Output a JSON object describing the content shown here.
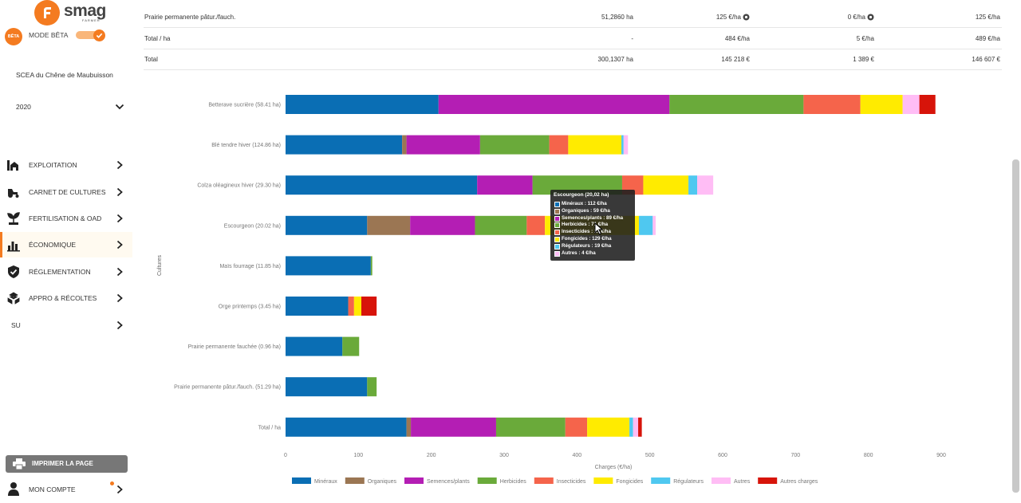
{
  "brand": {
    "name": "smag",
    "sub": "FARMER",
    "accent": "#f47b20"
  },
  "beta": {
    "badge": "BÊTA",
    "label": "MODE BÊTA",
    "enabled": true
  },
  "company": "SCEA du Chêne de Maubuisson",
  "year": "2020",
  "nav": [
    {
      "label": "EXPLOITATION",
      "icon": "farm-icon"
    },
    {
      "label": "CARNET DE CULTURES",
      "icon": "tractor-icon"
    },
    {
      "label": "FERTILISATION & OAD",
      "icon": "sprout-icon"
    },
    {
      "label": "ÉCONOMIQUE",
      "icon": "bar-chart-icon",
      "active": true
    },
    {
      "label": "RÉGLEMENTATION",
      "icon": "shield-check-icon"
    },
    {
      "label": "APPRO & RÉCOLTES",
      "icon": "boxes-icon"
    },
    {
      "label": "SU",
      "icon": ""
    }
  ],
  "print_label": "IMPRIMER LA PAGE",
  "account_label": "MON COMPTE",
  "summary_rows": [
    {
      "label": "Prairie permanente pâtur./fauch.",
      "surface": "51,2860 ha",
      "charges": "125 €/ha",
      "autres": "0 €/ha",
      "total": "125 €/ha",
      "icons": true
    },
    {
      "label": "Total / ha",
      "surface": "-",
      "charges": "484 €/ha",
      "autres": "5 €/ha",
      "total": "489 €/ha",
      "icons": false
    },
    {
      "label": "Total",
      "surface": "300,1307 ha",
      "charges": "145 218 €",
      "autres": "1 389 €",
      "total": "146 607 €",
      "icons": false
    }
  ],
  "chart_data": {
    "type": "bar",
    "orientation": "horizontal",
    "stacked": true,
    "title": "",
    "xlabel": "Charges (€/ha)",
    "ylabel": "Cultures",
    "xlim": [
      0,
      900
    ],
    "xticks": [
      0,
      100,
      200,
      300,
      400,
      500,
      600,
      700,
      800,
      900
    ],
    "legend_position": "bottom",
    "categories": [
      "Betterave sucrière (58.41 ha)",
      "Blé tendre hiver (124.86 ha)",
      "Colza oléagineux hiver (29.30 ha)",
      "Escourgeon (20.02 ha)",
      "Maïs fourrage (11.85 ha)",
      "Orge printemps (3.45 ha)",
      "Prairie permanente fauchée (0.96 ha)",
      "Prairie permanente pâtur./fauch. (51.29 ha)",
      "Total / ha"
    ],
    "series": [
      {
        "name": "Minéraux",
        "color": "#0a6eb4",
        "values": [
          210,
          160,
          263,
          112,
          117,
          86,
          78,
          112,
          166
        ]
      },
      {
        "name": "Organiques",
        "color": "#9b7653",
        "values": [
          0,
          6,
          0,
          59,
          0,
          0,
          0,
          0,
          6
        ]
      },
      {
        "name": "Semences/plants",
        "color": "#b41eb4",
        "values": [
          317,
          101,
          76,
          89,
          0,
          0,
          0,
          0,
          117
        ]
      },
      {
        "name": "Herbicides",
        "color": "#6aaa3a",
        "values": [
          184,
          95,
          123,
          71,
          2,
          0,
          23,
          13,
          95
        ]
      },
      {
        "name": "Insecticides",
        "color": "#f5644b",
        "values": [
          78,
          26,
          29,
          25,
          0,
          8,
          0,
          0,
          30
        ]
      },
      {
        "name": "Fongicides",
        "color": "#ffeb00",
        "values": [
          58,
          73,
          62,
          129,
          0,
          10,
          0,
          0,
          58
        ]
      },
      {
        "name": "Régulateurs",
        "color": "#4fc8f0",
        "values": [
          0,
          3,
          12,
          19,
          0,
          0,
          0,
          0,
          5
        ]
      },
      {
        "name": "Autres",
        "color": "#ffbdf5",
        "values": [
          23,
          6,
          22,
          4,
          0,
          0,
          0,
          0,
          7
        ]
      },
      {
        "name": "Autres charges",
        "color": "#d7140a",
        "values": [
          22,
          0,
          0,
          0,
          0,
          21,
          0,
          0,
          5
        ]
      }
    ]
  },
  "tooltip": {
    "title": "Escourgeon (20,02 ha)",
    "lines": [
      {
        "text": "Minéraux : 112 €/ha",
        "color": "#0a6eb4"
      },
      {
        "text": "Organiques : 59 €/ha",
        "color": "#9b7653"
      },
      {
        "text": "Semences/plants : 89 €/ha",
        "color": "#b41eb4"
      },
      {
        "text": "Herbicides : 71 €/ha",
        "color": "#6aaa3a"
      },
      {
        "text": "Insecticides : 25 €/ha",
        "color": "#f5644b"
      },
      {
        "text": "Fongicides : 129 €/ha",
        "color": "#ffeb00"
      },
      {
        "text": "Régulateurs : 19 €/ha",
        "color": "#4fc8f0"
      },
      {
        "text": "Autres : 4 €/ha",
        "color": "#ffbdf5"
      }
    ]
  }
}
